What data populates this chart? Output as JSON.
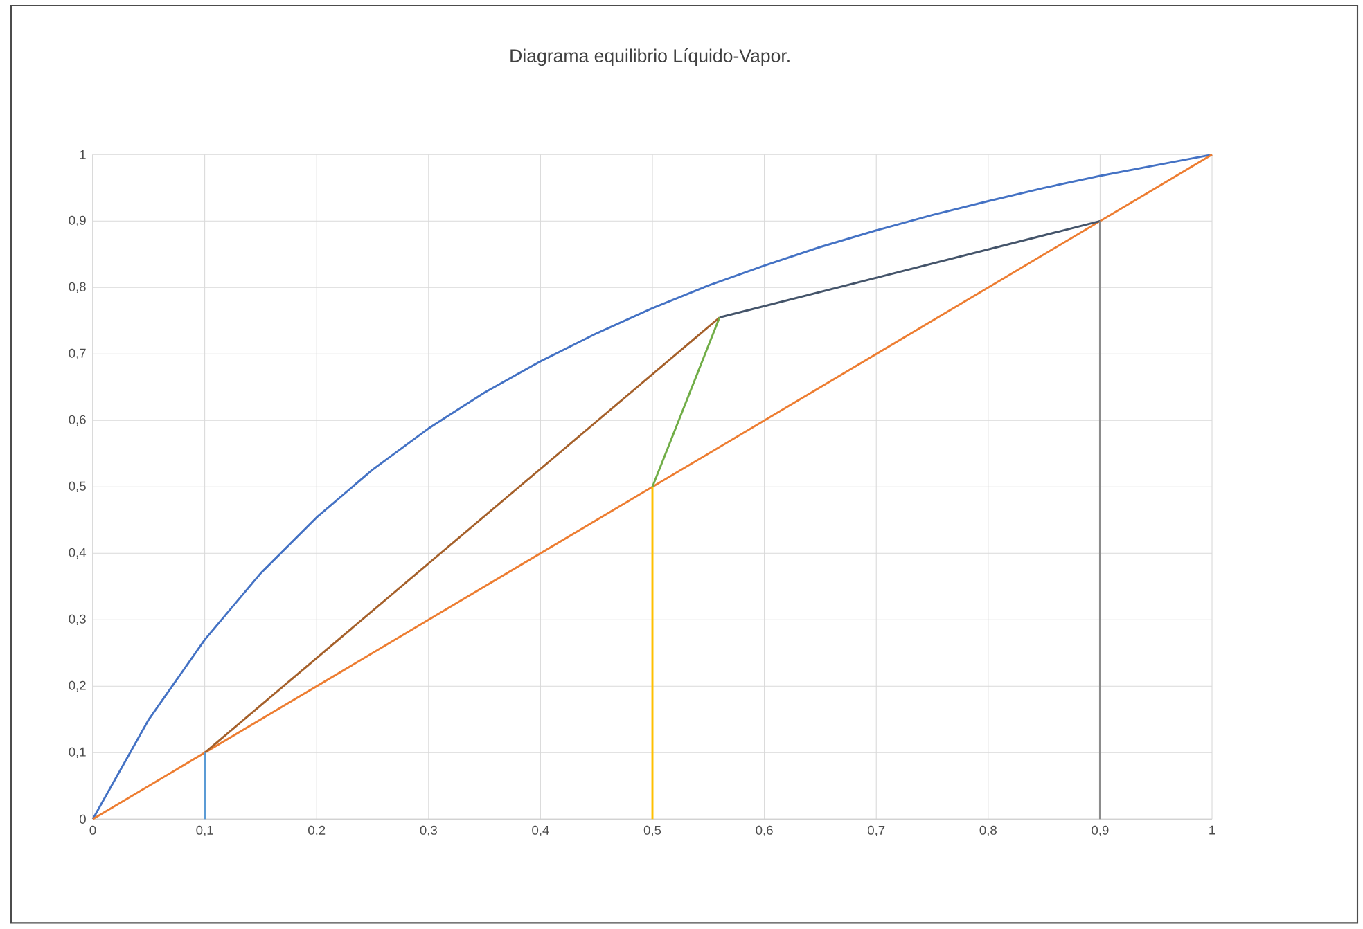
{
  "chart_data": {
    "type": "line",
    "title": "Diagrama equilibrio Líquido-Vapor.",
    "series": [
      {
        "color": "#4472c4",
        "x": [
          0,
          0.05,
          0.1,
          0.15,
          0.2,
          0.25,
          0.3,
          0.35,
          0.4,
          0.45,
          0.5,
          0.55,
          0.6,
          0.65,
          0.7,
          0.75,
          0.8,
          0.85,
          0.9,
          0.95,
          1
        ],
        "values": [
          0,
          0.15,
          0.27,
          0.37,
          0.454,
          0.526,
          0.588,
          0.642,
          0.689,
          0.731,
          0.769,
          0.803,
          0.833,
          0.861,
          0.886,
          0.909,
          0.93,
          0.95,
          0.968,
          0.984,
          1
        ]
      },
      {
        "color": "#ed7d31",
        "x": [
          0,
          1
        ],
        "values": [
          0,
          1
        ]
      },
      {
        "color": "#a5602a",
        "x": [
          0.1,
          0.56
        ],
        "values": [
          0.1,
          0.755
        ]
      },
      {
        "color": "#44546a",
        "x": [
          0.56,
          0.9
        ],
        "values": [
          0.755,
          0.9
        ]
      },
      {
        "color": "#70ad47",
        "x": [
          0.5,
          0.56
        ],
        "values": [
          0.5,
          0.755
        ]
      },
      {
        "color": "#5b9bd5",
        "x": [
          0.1,
          0.1
        ],
        "values": [
          0,
          0.1
        ]
      },
      {
        "color": "#ffc000",
        "x": [
          0.5,
          0.5
        ],
        "values": [
          0,
          0.5
        ]
      },
      {
        "color": "#8c8c8c",
        "x": [
          0.9,
          0.9
        ],
        "values": [
          0,
          0.9
        ]
      }
    ],
    "xlim": [
      0,
      1
    ],
    "ylim": [
      0,
      1
    ],
    "xticks": [
      0,
      {
        "value": 0.1,
        "label": "0,1"
      },
      {
        "value": 0.2,
        "label": "0,2"
      },
      {
        "value": 0.3,
        "label": "0,3"
      },
      {
        "value": 0.4,
        "label": "0,4"
      },
      {
        "value": 0.5,
        "label": "0,5"
      },
      {
        "value": 0.6,
        "label": "0,6"
      },
      {
        "value": 0.7,
        "label": "0,7"
      },
      {
        "value": 0.8,
        "label": "0,8"
      },
      {
        "value": 0.9,
        "label": "0,9"
      },
      1
    ],
    "yticks": [
      0,
      {
        "value": 0.1,
        "label": "0,1"
      },
      {
        "value": 0.2,
        "label": "0,2"
      },
      {
        "value": 0.3,
        "label": "0,3"
      },
      {
        "value": 0.4,
        "label": "0,4"
      },
      {
        "value": 0.5,
        "label": "0,5"
      },
      {
        "value": 0.6,
        "label": "0,6"
      },
      {
        "value": 0.7,
        "label": "0,7"
      },
      {
        "value": 0.8,
        "label": "0,8"
      },
      {
        "value": 0.9,
        "label": "0,9"
      },
      1
    ],
    "grid": true
  }
}
